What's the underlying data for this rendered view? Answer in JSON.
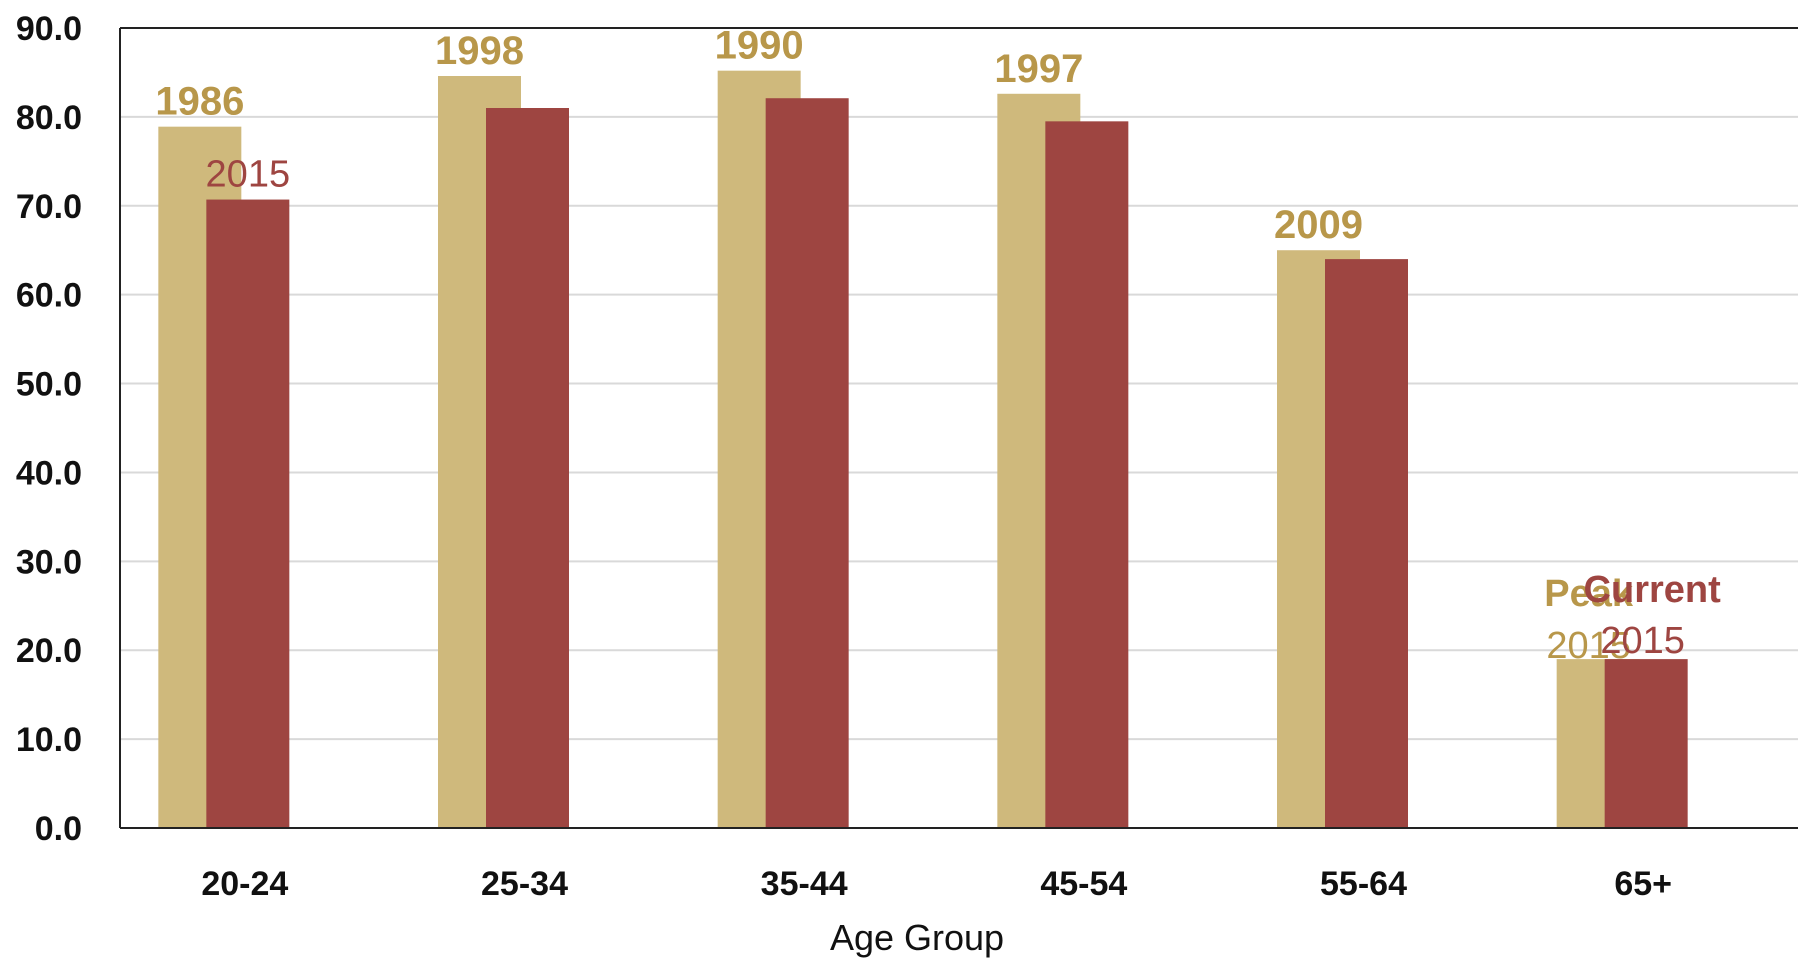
{
  "chart_data": {
    "type": "bar",
    "xlabel": "Age Group",
    "ylabel": "",
    "ylim": [
      0,
      90
    ],
    "y_ticks": [
      "0.0",
      "10.0",
      "20.0",
      "30.0",
      "40.0",
      "50.0",
      "60.0",
      "70.0",
      "80.0",
      "90.0"
    ],
    "categories": [
      "20-24",
      "25-34",
      "35-44",
      "45-54",
      "55-64",
      "65+"
    ],
    "grid": true,
    "series": [
      {
        "name": "Peak",
        "color": "#CFB97C",
        "label_color": "#B8974A",
        "values": [
          78.9,
          84.6,
          85.2,
          82.6,
          65.0,
          19.0
        ],
        "point_labels": [
          "1986",
          "1998",
          "1990",
          "1997",
          "2009",
          "2015"
        ]
      },
      {
        "name": "Current",
        "color": "#9E4541",
        "label_color": "#9E4541",
        "values": [
          70.7,
          81.0,
          82.1,
          79.5,
          64.0,
          19.0
        ],
        "point_labels": [
          "2015",
          "",
          "",
          "",
          "",
          "2015"
        ]
      }
    ]
  }
}
